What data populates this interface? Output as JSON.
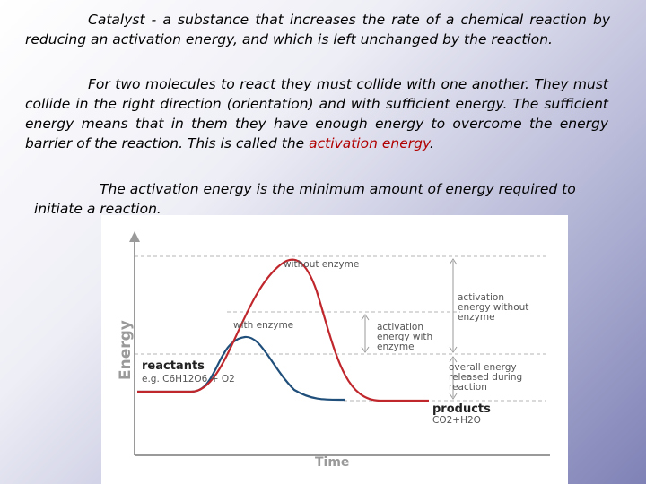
{
  "paragraph1": {
    "term": "Catalyst",
    "text": " - a substance that increases the rate of a chemical reaction by reducing an activation energy, and which is left unchanged by the reaction."
  },
  "paragraph2": {
    "text": "For two molecules to react they must collide with one another. They must collide in the right direction (orientation) and with sufficient energy. The sufficient energy means that in them they have enough energy to overcome the energy barrier of the reaction. This is called the ",
    "term": "activation energy",
    "end": "."
  },
  "paragraph3": {
    "text": "The activation energy is the minimum amount of energy required to initiate a reaction."
  },
  "figure": {
    "ylabel": "Energy",
    "xlabel": "Time",
    "without_enzyme_label": "without enzyme",
    "with_enzyme_label": "with enzyme",
    "reactants_label": "reactants",
    "reactants_example": "e.g. C6H12O6 + O2",
    "products_label": "products",
    "products_formula": "CO2+H2O",
    "activation_without": [
      "activation",
      "energy without",
      "enzyme"
    ],
    "activation_with": [
      "activation",
      "energy with",
      "enzyme"
    ],
    "overall_energy": [
      "overall energy",
      "released during",
      "reaction"
    ],
    "colors": {
      "without_enzyme": "#c0272d",
      "with_enzyme": "#1f4f7a",
      "text": "#555555",
      "dashed": "#b5b5b5"
    }
  }
}
